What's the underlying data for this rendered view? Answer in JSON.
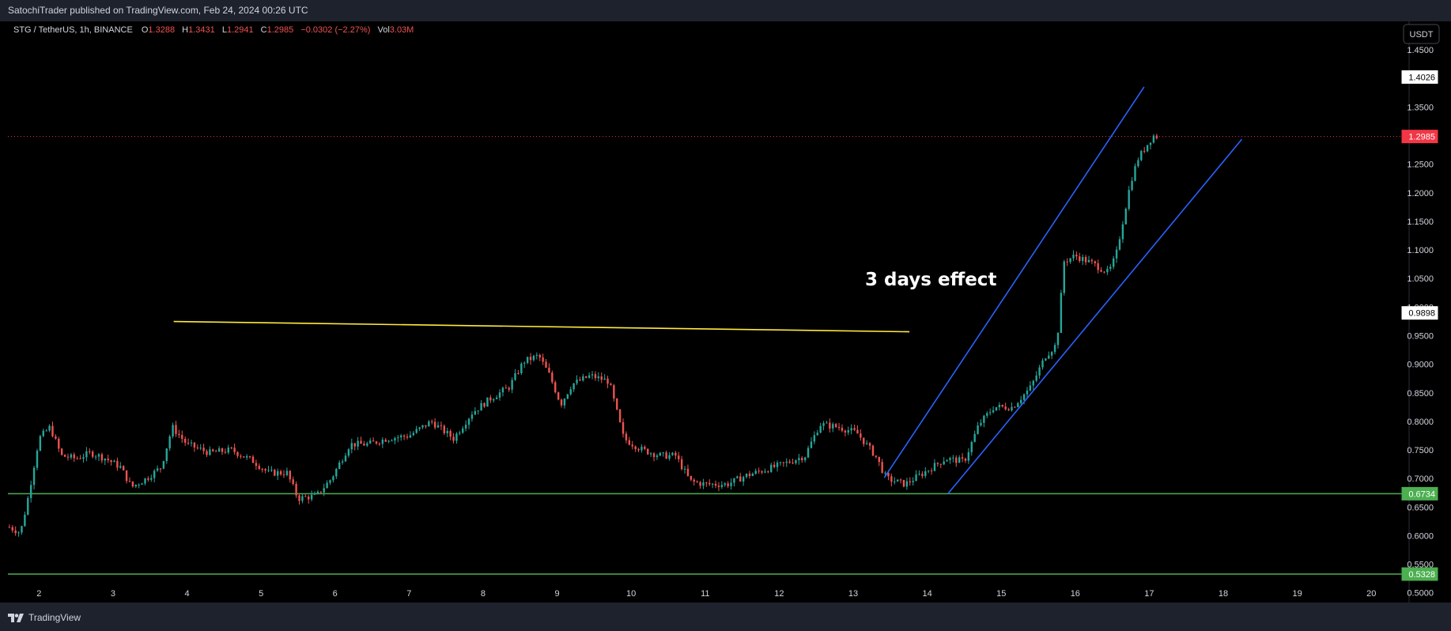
{
  "header": {
    "published": "SatochiTrader published on TradingView.com, Feb 24, 2024 00:26 UTC"
  },
  "footer": {
    "brand": "TradingView"
  },
  "currency_button": "USDT",
  "legend": {
    "symbol": "STG / TetherUS, 1h, BINANCE",
    "o_label": "O",
    "o_value": "1.3288",
    "h_label": "H",
    "h_value": "1.3431",
    "l_label": "L",
    "l_value": "1.2941",
    "c_label": "C",
    "c_value": "1.2985",
    "change": "−0.0302 (−2.27%)",
    "vol_label": "Vol",
    "vol_value": "3.03M"
  },
  "colors": {
    "up": "#26a69a",
    "down": "#ef5350",
    "support": "#4caf50",
    "channel": "#2962ff",
    "trend": "#ffeb3b",
    "price": "#f23645"
  },
  "chart_data": {
    "type": "candlestick",
    "title": "STG / TetherUS, 1h, BINANCE",
    "annotation": "3 days effect",
    "y_ticks": [
      "1.4500",
      "1.4000",
      "1.3500",
      "1.3000",
      "1.2500",
      "1.2000",
      "1.1500",
      "1.1000",
      "1.0500",
      "1.0000",
      "0.9500",
      "0.9000",
      "0.8500",
      "0.8000",
      "0.7500",
      "0.7000",
      "0.6500",
      "0.6000",
      "0.5500",
      "0.5000"
    ],
    "x_ticks": [
      "2",
      "3",
      "4",
      "5",
      "6",
      "7",
      "8",
      "9",
      "10",
      "11",
      "12",
      "13",
      "14",
      "15",
      "16",
      "17",
      "18",
      "19",
      "20"
    ],
    "ylim": [
      0.483,
      1.5
    ],
    "xlim": [
      1.58,
      20.51
    ],
    "price_labels": [
      {
        "value": 1.4026,
        "text": "1.4026",
        "style": "white"
      },
      {
        "value": 1.2985,
        "text": "1.2985",
        "style": "red"
      },
      {
        "value": 0.9898,
        "text": "0.9898",
        "style": "white"
      },
      {
        "value": 0.6734,
        "text": "0.6734",
        "style": "green"
      },
      {
        "value": 0.5328,
        "text": "0.5328",
        "style": "green"
      }
    ],
    "horizontal_lines": [
      {
        "value": 0.6734,
        "color": "#4caf50"
      },
      {
        "value": 0.5328,
        "color": "#4caf50"
      },
      {
        "value": 1.2985,
        "color": "#f23645",
        "dashed": true
      }
    ],
    "trendlines": [
      {
        "x1": 3.82,
        "y1": 0.9748,
        "x2": 13.76,
        "y2": 0.9568,
        "color": "#ffeb3b"
      },
      {
        "x1": 13.42,
        "y1": 0.7013,
        "x2": 16.93,
        "y2": 1.3853,
        "color": "#2962ff"
      },
      {
        "x1": 14.28,
        "y1": 0.6734,
        "x2": 18.25,
        "y2": 1.2936,
        "color": "#2962ff"
      }
    ],
    "close_path": [
      [
        1.6,
        0.615
      ],
      [
        1.75,
        0.605
      ],
      [
        1.85,
        0.665
      ],
      [
        2.0,
        0.77
      ],
      [
        2.15,
        0.79
      ],
      [
        2.3,
        0.74
      ],
      [
        2.5,
        0.735
      ],
      [
        2.7,
        0.745
      ],
      [
        2.9,
        0.735
      ],
      [
        3.1,
        0.72
      ],
      [
        3.25,
        0.685
      ],
      [
        3.45,
        0.7
      ],
      [
        3.65,
        0.72
      ],
      [
        3.8,
        0.79
      ],
      [
        4.0,
        0.76
      ],
      [
        4.3,
        0.745
      ],
      [
        4.6,
        0.75
      ],
      [
        4.9,
        0.73
      ],
      [
        5.1,
        0.71
      ],
      [
        5.35,
        0.71
      ],
      [
        5.5,
        0.665
      ],
      [
        5.75,
        0.67
      ],
      [
        5.95,
        0.7
      ],
      [
        6.2,
        0.76
      ],
      [
        6.45,
        0.76
      ],
      [
        6.7,
        0.77
      ],
      [
        7.0,
        0.775
      ],
      [
        7.3,
        0.8
      ],
      [
        7.6,
        0.77
      ],
      [
        7.85,
        0.815
      ],
      [
        8.1,
        0.84
      ],
      [
        8.35,
        0.86
      ],
      [
        8.55,
        0.905
      ],
      [
        8.75,
        0.915
      ],
      [
        8.9,
        0.88
      ],
      [
        9.05,
        0.83
      ],
      [
        9.2,
        0.865
      ],
      [
        9.45,
        0.88
      ],
      [
        9.7,
        0.87
      ],
      [
        9.9,
        0.77
      ],
      [
        10.15,
        0.75
      ],
      [
        10.4,
        0.74
      ],
      [
        10.6,
        0.74
      ],
      [
        10.8,
        0.695
      ],
      [
        11.0,
        0.69
      ],
      [
        11.3,
        0.69
      ],
      [
        11.55,
        0.705
      ],
      [
        11.8,
        0.715
      ],
      [
        12.05,
        0.725
      ],
      [
        12.35,
        0.74
      ],
      [
        12.55,
        0.795
      ],
      [
        12.8,
        0.79
      ],
      [
        13.05,
        0.78
      ],
      [
        13.3,
        0.74
      ],
      [
        13.45,
        0.7
      ],
      [
        13.7,
        0.69
      ],
      [
        13.95,
        0.71
      ],
      [
        14.25,
        0.735
      ],
      [
        14.5,
        0.73
      ],
      [
        14.7,
        0.795
      ],
      [
        14.9,
        0.825
      ],
      [
        15.15,
        0.825
      ],
      [
        15.4,
        0.86
      ],
      [
        15.6,
        0.915
      ],
      [
        15.75,
        0.935
      ],
      [
        15.85,
        1.08
      ],
      [
        16.0,
        1.09
      ],
      [
        16.25,
        1.075
      ],
      [
        16.45,
        1.06
      ],
      [
        16.55,
        1.09
      ],
      [
        16.75,
        1.22
      ],
      [
        16.85,
        1.26
      ],
      [
        17.05,
        1.3
      ],
      [
        17.1,
        1.2985
      ]
    ]
  }
}
